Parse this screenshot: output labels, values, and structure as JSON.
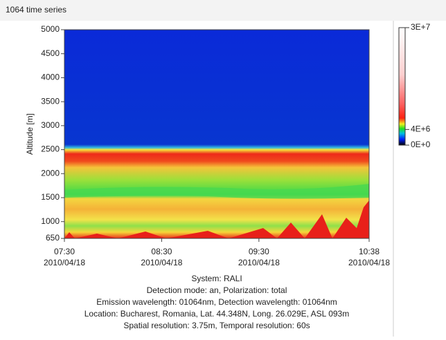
{
  "title": "1064 time series",
  "chart_data": {
    "type": "heatmap",
    "ylabel": "Altitude [m]",
    "xlim": [
      "2010-04-18T07:30",
      "2010-04-18T10:38"
    ],
    "xticks": [
      {
        "value": "2010-04-18T07:30",
        "label": [
          "07:30",
          "2010/04/18"
        ]
      },
      {
        "value": "2010-04-18T08:30",
        "label": [
          "08:30",
          "2010/04/18"
        ]
      },
      {
        "value": "2010-04-18T09:30",
        "label": [
          "09:30",
          "2010/04/18"
        ]
      },
      {
        "value": "2010-04-18T10:38",
        "label": [
          "10:38",
          "2010/04/18"
        ]
      }
    ],
    "ylim": [
      650,
      5000
    ],
    "yticks": [
      650,
      1000,
      1500,
      2000,
      2500,
      3000,
      3500,
      4000,
      4500,
      5000
    ],
    "clim": [
      0,
      30000000
    ],
    "cticks": [
      {
        "value": 30000000,
        "label": "3E+7"
      },
      {
        "value": 4000000,
        "label": "4E+6"
      },
      {
        "value": 0,
        "label": "0E+0"
      }
    ]
  },
  "info": [
    "System: RALI",
    "Detection mode: an, Polarization: total",
    "Emission wavelength: 01064nm, Detection wavelength: 01064nm",
    "Location: Bucharest, Romania, Lat. 44.348N, Long. 26.029E, ASL 093m",
    "Spatial resolution: 3.75m, Temporal resolution: 60s"
  ]
}
